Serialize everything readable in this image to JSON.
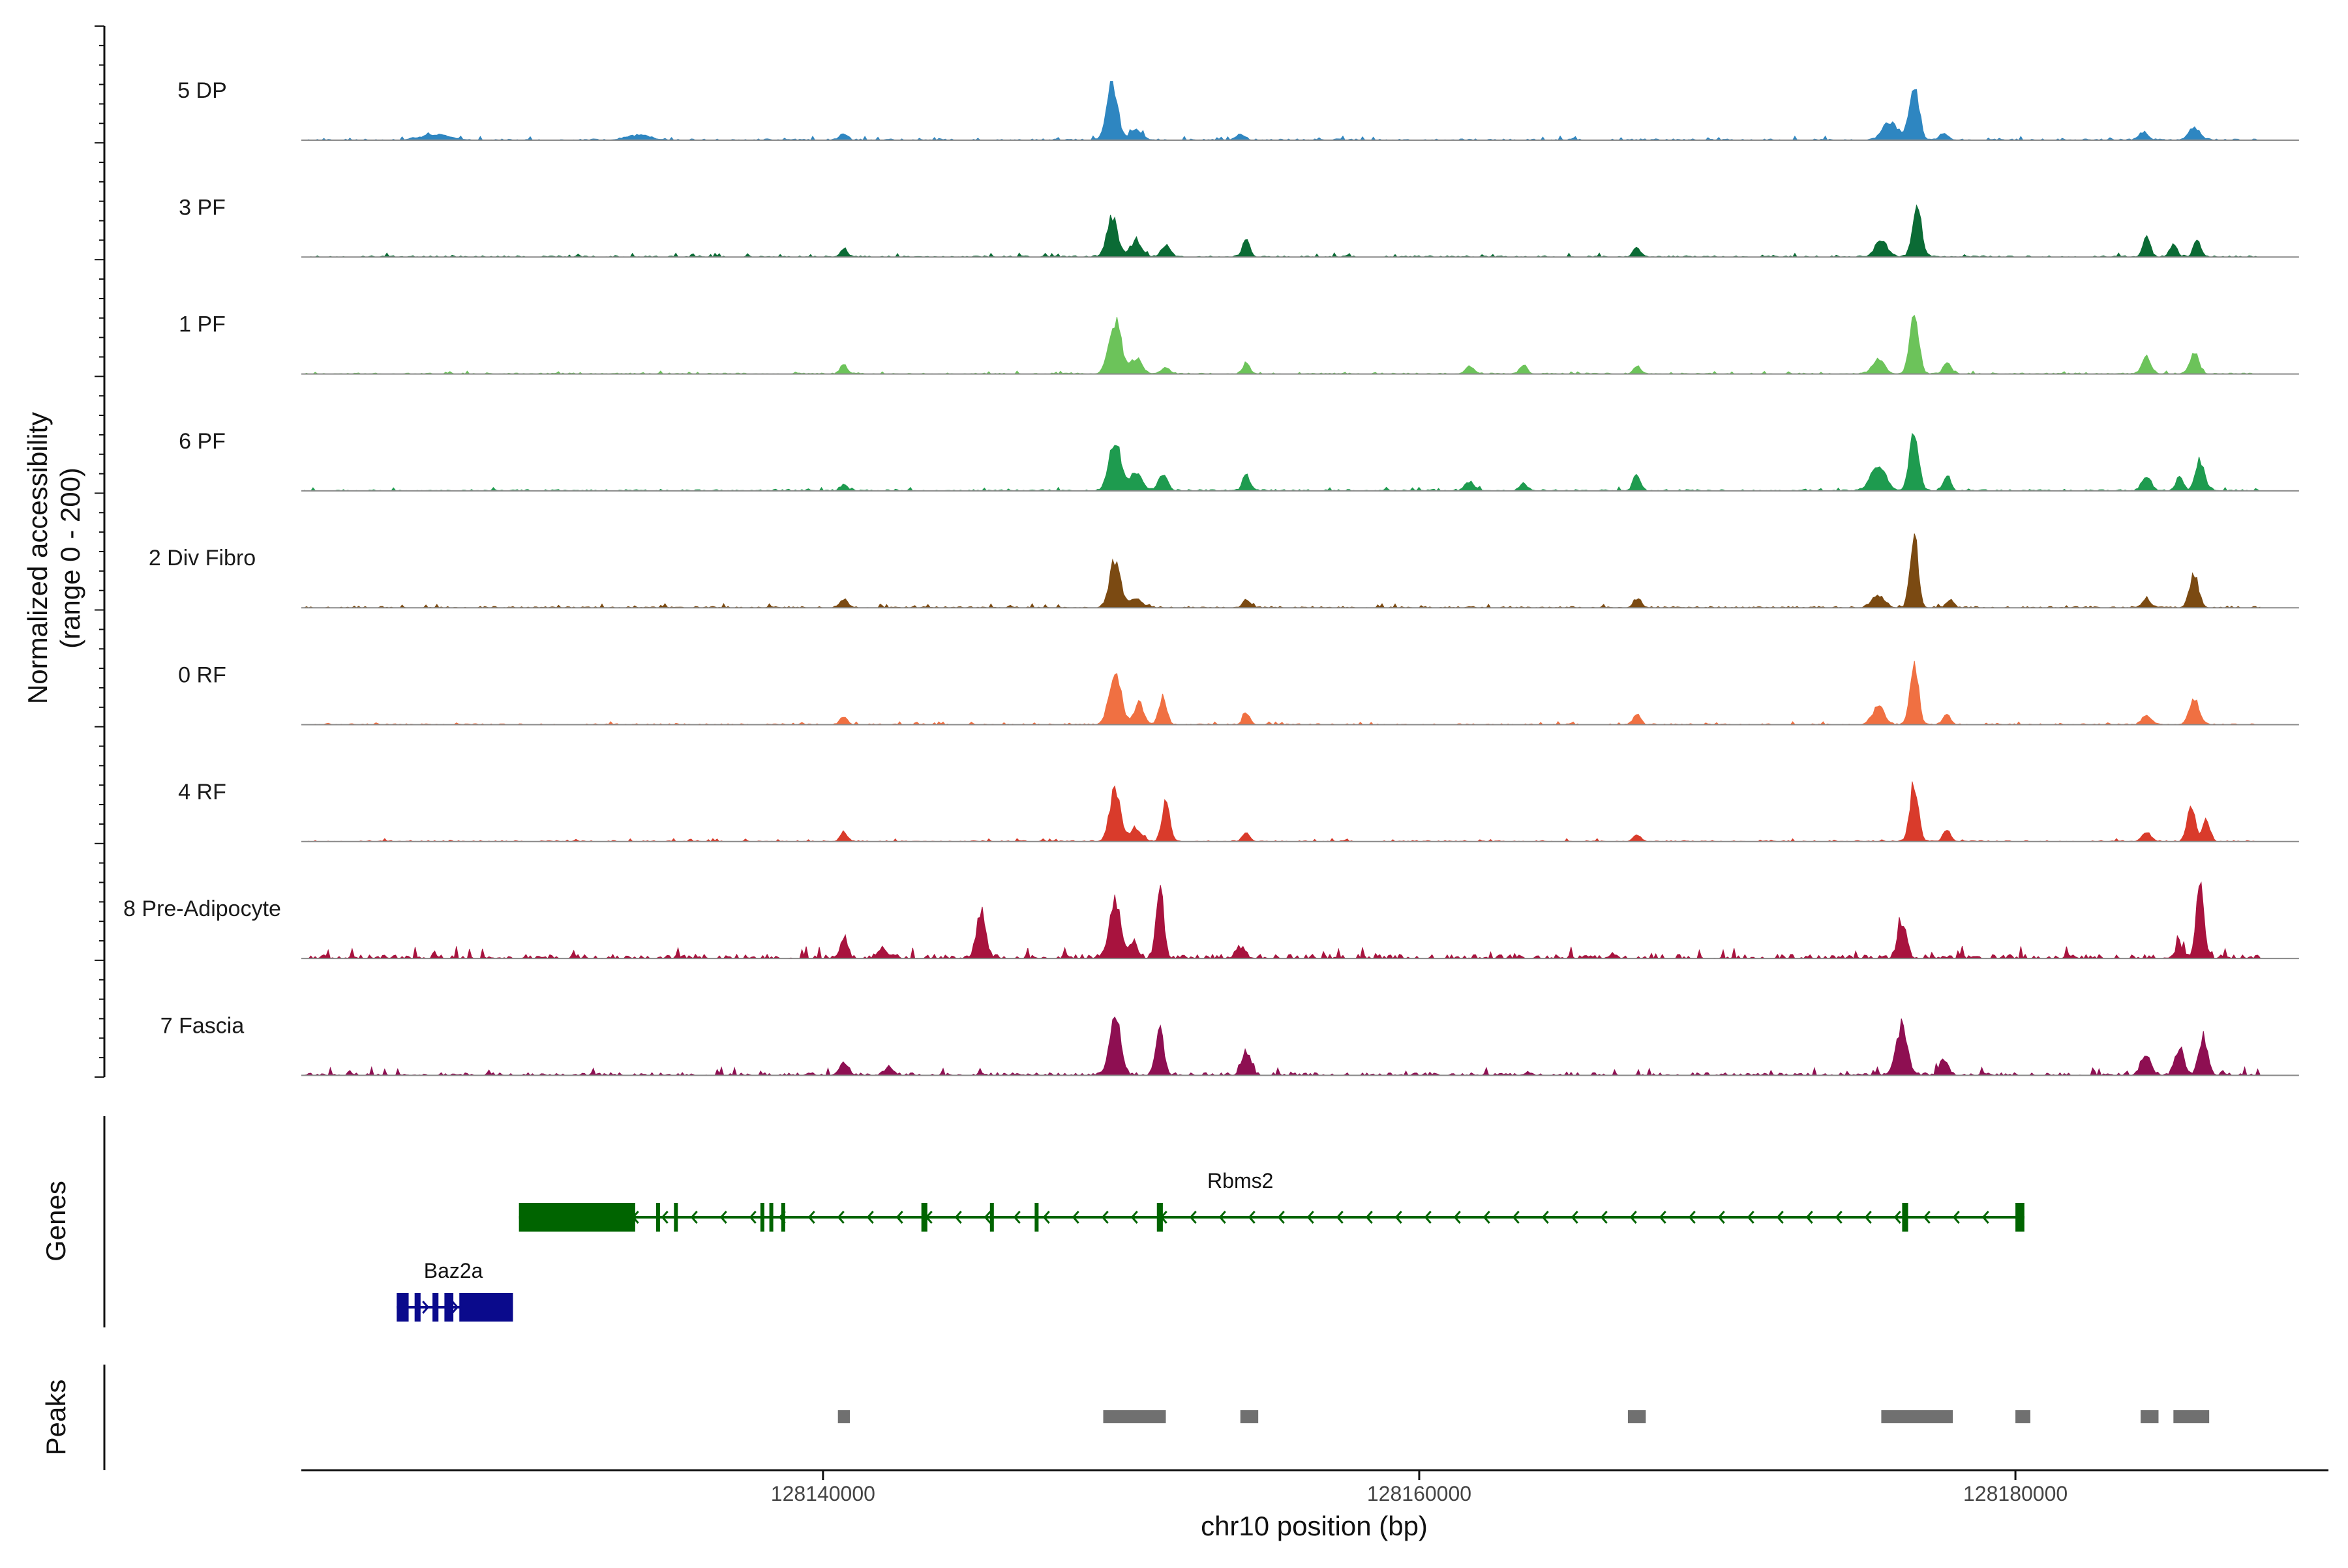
{
  "chart_data": {
    "type": "area",
    "title": "",
    "ylabel_line1": "Normalized accessibility",
    "ylabel_line2": "(range 0 - 200)",
    "ylim": [
      0,
      200
    ],
    "xlabel": "chr10 position (bp)",
    "xlim": [
      128122500,
      128190500
    ],
    "xticks": [
      128140000,
      128160000,
      128180000
    ],
    "xtick_labels": [
      "128140000",
      "128160000",
      "128180000"
    ],
    "tracks": [
      {
        "name": "5 DP",
        "color": "#2E86C1",
        "noise": 4,
        "peaks": [
          [
            128127000,
            18,
            500
          ],
          [
            128133800,
            16,
            400
          ],
          [
            128140700,
            22,
            120
          ],
          [
            128149700,
            190,
            180
          ],
          [
            128150500,
            35,
            200
          ],
          [
            128154000,
            18,
            150
          ],
          [
            128175800,
            60,
            250
          ],
          [
            128176600,
            185,
            160
          ],
          [
            128177600,
            20,
            150
          ],
          [
            128184300,
            25,
            150
          ],
          [
            128186000,
            40,
            180
          ]
        ]
      },
      {
        "name": "3 PF",
        "color": "#0B6B35",
        "noise": 4,
        "peaks": [
          [
            128140700,
            25,
            120
          ],
          [
            128149700,
            130,
            180
          ],
          [
            128150500,
            50,
            200
          ],
          [
            128151500,
            40,
            150
          ],
          [
            128154200,
            60,
            120
          ],
          [
            128167300,
            35,
            120
          ],
          [
            128175500,
            55,
            200
          ],
          [
            128176700,
            165,
            150
          ],
          [
            128184400,
            70,
            120
          ],
          [
            128185300,
            45,
            120
          ],
          [
            128186100,
            55,
            120
          ]
        ]
      },
      {
        "name": "1 PF",
        "color": "#6CC35A",
        "noise": 3,
        "peaks": [
          [
            128140700,
            30,
            120
          ],
          [
            128149800,
            175,
            200
          ],
          [
            128150500,
            50,
            200
          ],
          [
            128151500,
            20,
            150
          ],
          [
            128154200,
            35,
            120
          ],
          [
            128161700,
            25,
            150
          ],
          [
            128163500,
            30,
            120
          ],
          [
            128167300,
            25,
            120
          ],
          [
            128175400,
            50,
            200
          ],
          [
            128176600,
            200,
            150
          ],
          [
            128177700,
            40,
            120
          ],
          [
            128184400,
            55,
            150
          ],
          [
            128186000,
            70,
            150
          ]
        ]
      },
      {
        "name": "6 PF",
        "color": "#1E9B4F",
        "noise": 4,
        "peaks": [
          [
            128140700,
            20,
            120
          ],
          [
            128149800,
            165,
            200
          ],
          [
            128150500,
            60,
            200
          ],
          [
            128151400,
            55,
            150
          ],
          [
            128154200,
            55,
            120
          ],
          [
            128161700,
            30,
            150
          ],
          [
            128163500,
            25,
            120
          ],
          [
            128167300,
            55,
            120
          ],
          [
            128175400,
            80,
            250
          ],
          [
            128176600,
            200,
            150
          ],
          [
            128177700,
            50,
            120
          ],
          [
            128184400,
            50,
            150
          ],
          [
            128185500,
            45,
            120
          ],
          [
            128186200,
            100,
            150
          ]
        ]
      },
      {
        "name": "2 Div Fibro",
        "color": "#7B4A12",
        "noise": 4,
        "peaks": [
          [
            128140700,
            30,
            120
          ],
          [
            128149800,
            155,
            180
          ],
          [
            128150500,
            30,
            200
          ],
          [
            128154200,
            25,
            120
          ],
          [
            128167300,
            30,
            120
          ],
          [
            128175400,
            40,
            200
          ],
          [
            128176600,
            240,
            130
          ],
          [
            128177800,
            25,
            120
          ],
          [
            128184400,
            25,
            150
          ],
          [
            128186000,
            105,
            150
          ]
        ]
      },
      {
        "name": "0 RF",
        "color": "#F07042",
        "noise": 3,
        "peaks": [
          [
            128140700,
            25,
            120
          ],
          [
            128149800,
            175,
            200
          ],
          [
            128150600,
            75,
            150
          ],
          [
            128151400,
            90,
            130
          ],
          [
            128154200,
            35,
            120
          ],
          [
            128167300,
            35,
            120
          ],
          [
            128175400,
            60,
            200
          ],
          [
            128176600,
            205,
            140
          ],
          [
            128177700,
            35,
            120
          ],
          [
            128184400,
            30,
            150
          ],
          [
            128186000,
            85,
            160
          ]
        ]
      },
      {
        "name": "4 RF",
        "color": "#D93B2B",
        "noise": 3,
        "peaks": [
          [
            128140700,
            30,
            120
          ],
          [
            128149800,
            170,
            180
          ],
          [
            128150500,
            40,
            200
          ],
          [
            128151500,
            135,
            130
          ],
          [
            128154200,
            30,
            120
          ],
          [
            128167300,
            25,
            120
          ],
          [
            128176600,
            190,
            140
          ],
          [
            128177700,
            40,
            120
          ],
          [
            128184400,
            30,
            150
          ],
          [
            128185900,
            120,
            130
          ],
          [
            128186400,
            75,
            120
          ]
        ]
      },
      {
        "name": "8 Pre-Adipocyte",
        "color": "#A8133E",
        "noise": 12,
        "peaks": [
          [
            128140700,
            65,
            120
          ],
          [
            128142000,
            30,
            150
          ],
          [
            128145300,
            155,
            150
          ],
          [
            128149800,
            190,
            180
          ],
          [
            128150400,
            50,
            150
          ],
          [
            128151300,
            260,
            120
          ],
          [
            128154000,
            35,
            150
          ],
          [
            128176200,
            125,
            140
          ],
          [
            128185500,
            40,
            150
          ],
          [
            128186200,
            265,
            120
          ]
        ]
      },
      {
        "name": "7 Fascia",
        "color": "#8E0F52",
        "noise": 8,
        "peaks": [
          [
            128140700,
            40,
            150
          ],
          [
            128142200,
            25,
            150
          ],
          [
            128149800,
            200,
            180
          ],
          [
            128151300,
            155,
            130
          ],
          [
            128154200,
            75,
            150
          ],
          [
            128176200,
            170,
            180
          ],
          [
            128177600,
            50,
            150
          ],
          [
            128184400,
            70,
            150
          ],
          [
            128185500,
            90,
            150
          ],
          [
            128186300,
            115,
            150
          ]
        ]
      }
    ],
    "genes": [
      {
        "name": "Rbms2",
        "color": "#006400",
        "start": 128129800,
        "end": 128180300,
        "strand": "-",
        "row": 0,
        "exons": [
          [
            128129800,
            128133700
          ],
          [
            128134400,
            128134500
          ],
          [
            128135000,
            128135100
          ],
          [
            128137900,
            128138000
          ],
          [
            128138200,
            128138300
          ],
          [
            128138600,
            128138700
          ],
          [
            128143300,
            128143500
          ],
          [
            128145600,
            128145700
          ],
          [
            128147100,
            128147200
          ],
          [
            128151200,
            128151400
          ],
          [
            128176200,
            128176400
          ],
          [
            128180000,
            128180300
          ]
        ]
      },
      {
        "name": "Baz2a",
        "color": "#0A0A8C",
        "start": 128125700,
        "end": 128129600,
        "strand": "+",
        "row": 1,
        "exons": [
          [
            128125700,
            128126100
          ],
          [
            128126300,
            128126500
          ],
          [
            128126900,
            128127100
          ],
          [
            128127300,
            128127600
          ],
          [
            128127800,
            128129600
          ]
        ]
      }
    ],
    "peaks_track": {
      "label": "Peaks",
      "color": "#707070",
      "regions": [
        [
          128140500,
          128140900
        ],
        [
          128149400,
          128151500
        ],
        [
          128154000,
          128154600
        ],
        [
          128167000,
          128167600
        ],
        [
          128175500,
          128177900
        ],
        [
          128180000,
          128180500
        ],
        [
          128184200,
          128184800
        ],
        [
          128185300,
          128186500
        ]
      ]
    },
    "genes_label": "Genes"
  }
}
